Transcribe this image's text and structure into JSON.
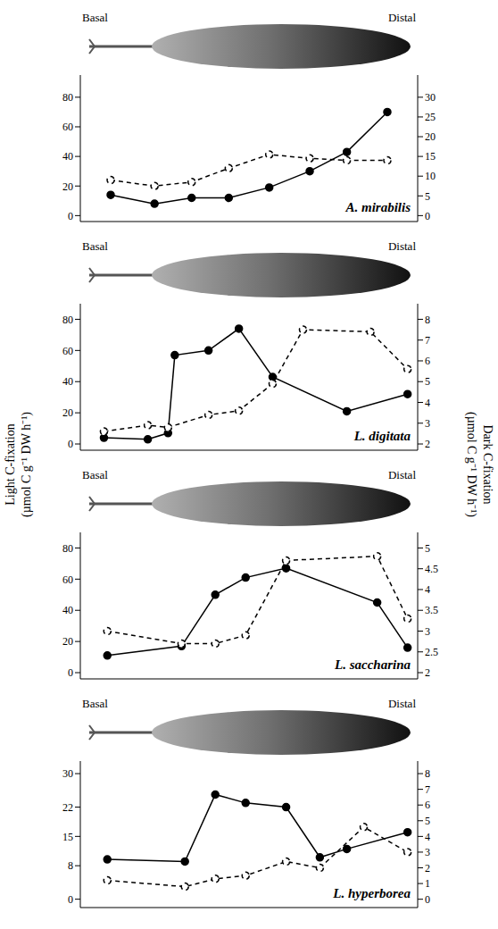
{
  "ylabel": [
    "Light C-fixation",
    "(µmol C g⁻¹ DW h⁻¹)"
  ],
  "y2label": [
    "Dark C-fixation",
    "(µmol C g⁻¹ DW h⁻¹)"
  ],
  "chart_data": [
    {
      "type": "line",
      "title": "A. mirabilis",
      "annotations": [
        "Basal",
        "Distal"
      ],
      "tick_labels": "y",
      "xlim": [
        0,
        100
      ],
      "ylim": [
        -4,
        95
      ],
      "yticks": [
        0,
        20,
        40,
        60,
        80
      ],
      "y2lim": [
        -1.5,
        35.625
      ],
      "y2ticks": [
        0,
        5,
        10,
        15,
        20,
        25,
        30
      ],
      "series": [
        {
          "x": [
            9,
            22,
            33,
            44,
            56,
            68,
            79,
            91
          ],
          "values": [
            14,
            8,
            12,
            12,
            19,
            30,
            43,
            70
          ],
          "color": "#000000",
          "marker": "filled circle",
          "line_style": "solid"
        },
        {
          "x": [
            9,
            22,
            33,
            44,
            56,
            68,
            79,
            91
          ],
          "values": [
            9,
            7.5,
            8.5,
            12,
            15.5,
            14.5,
            14,
            14
          ],
          "color": "#000000",
          "marker": "open circle",
          "line_style": "dashed",
          "axis": "y2"
        }
      ]
    },
    {
      "type": "line",
      "title": "L. digitata",
      "annotations": [
        "Basal",
        "Distal"
      ],
      "tick_labels": "y",
      "xlim": [
        0,
        100
      ],
      "ylim": [
        -4,
        90
      ],
      "yticks": [
        0,
        20,
        40,
        60,
        80
      ],
      "y2lim": [
        1.7,
        8.75
      ],
      "y2ticks": [
        2,
        3,
        4,
        5,
        6,
        7,
        8
      ],
      "series": [
        {
          "x": [
            7,
            20,
            26,
            28,
            38,
            47,
            57,
            79,
            97
          ],
          "values": [
            4,
            3,
            7,
            57,
            60,
            74,
            43,
            21,
            32
          ],
          "color": "#000000",
          "marker": "filled circle",
          "line_style": "solid"
        },
        {
          "x": [
            7,
            20,
            26,
            38,
            47,
            57,
            66,
            86,
            97
          ],
          "values": [
            2.6,
            2.9,
            2.8,
            3.4,
            3.6,
            4.9,
            7.5,
            7.4,
            5.6
          ],
          "color": "#000000",
          "marker": "open circle",
          "line_style": "dashed",
          "axis": "y2"
        }
      ]
    },
    {
      "type": "line",
      "title": "L. saccharina",
      "annotations": [
        "Basal",
        "Distal"
      ],
      "tick_labels": "y",
      "xlim": [
        0,
        100
      ],
      "ylim": [
        -4,
        90
      ],
      "yticks": [
        0,
        20,
        40,
        60,
        80
      ],
      "y2lim": [
        1.85,
        5.375
      ],
      "y2ticks": [
        2,
        2.5,
        3,
        3.5,
        4,
        4.5,
        5
      ],
      "series": [
        {
          "x": [
            8,
            30,
            40,
            49,
            61,
            88,
            97
          ],
          "values": [
            11,
            17,
            50,
            61,
            67,
            45,
            16
          ],
          "color": "#000000",
          "marker": "filled circle",
          "line_style": "solid"
        },
        {
          "x": [
            8,
            30,
            40,
            49,
            61,
            88,
            97
          ],
          "values": [
            3,
            2.7,
            2.7,
            2.9,
            4.7,
            4.8,
            3.3
          ],
          "color": "#000000",
          "marker": "open circle",
          "line_style": "dashed",
          "axis": "y2"
        }
      ]
    },
    {
      "type": "line",
      "title": "L. hyperborea",
      "annotations": [
        "Basal",
        "Distal"
      ],
      "tick_labels": "y",
      "xlim": [
        0,
        100
      ],
      "ylim": [
        -2,
        33
      ],
      "yticks": [
        0,
        8,
        15,
        22,
        30
      ],
      "y2lim": [
        -0.53,
        8.8
      ],
      "y2ticks": [
        0,
        1,
        2,
        3,
        4,
        5,
        6,
        7,
        8
      ],
      "series": [
        {
          "x": [
            8,
            31,
            40,
            49,
            61,
            71,
            79,
            97
          ],
          "values": [
            9.5,
            9,
            25,
            23,
            22,
            10,
            12,
            16
          ],
          "color": "#000000",
          "marker": "filled circle",
          "line_style": "solid"
        },
        {
          "x": [
            8,
            31,
            40,
            49,
            61,
            71,
            84,
            97
          ],
          "values": [
            1.2,
            0.8,
            1.3,
            1.5,
            2.4,
            2,
            4.6,
            3
          ],
          "color": "#000000",
          "marker": "open circle",
          "line_style": "dashed",
          "axis": "y2"
        }
      ]
    }
  ]
}
